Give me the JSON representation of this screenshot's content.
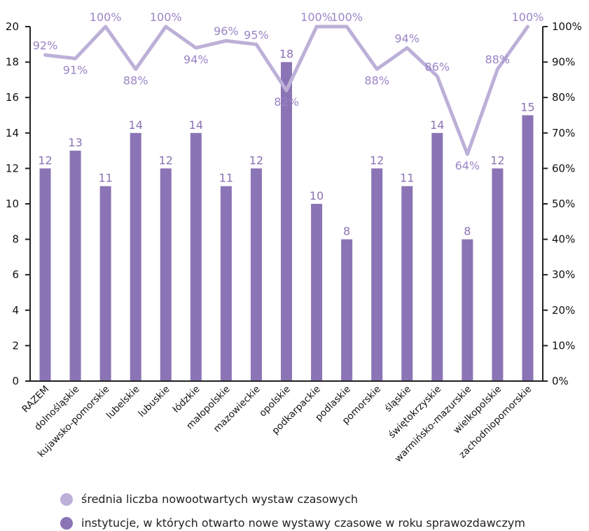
{
  "chart_data": {
    "type": "bar",
    "categories": [
      "RAZEM",
      "dolnośląskie",
      "kujawsko-pomorskie",
      "lubelskie",
      "lubuskie",
      "łódzkie",
      "małopolskie",
      "mazowieckie",
      "opolskie",
      "podkarpackie",
      "podlaskie",
      "pomorskie",
      "śląskie",
      "świętokrzyskie",
      "warmińsko-mazurskie",
      "wielkopolskie",
      "zachodniopomorskie"
    ],
    "series": [
      {
        "name": "instytucje, w których otwarto nowe wystawy czasowe w roku sprawozdawczym",
        "type": "bar",
        "axis": "left",
        "values": [
          12,
          13,
          11,
          14,
          12,
          14,
          11,
          12,
          18,
          10,
          8,
          12,
          11,
          14,
          8,
          12,
          15
        ],
        "labels": [
          "12",
          "13",
          "11",
          "14",
          "12",
          "14",
          "11",
          "12",
          "18",
          "10",
          "8",
          "12",
          "11",
          "14",
          "8",
          "12",
          "15"
        ]
      },
      {
        "name": "średnia liczba nowootwartych wystaw czasowych",
        "type": "line",
        "axis": "right",
        "values": [
          92,
          91,
          100,
          88,
          100,
          94,
          96,
          95,
          82,
          100,
          100,
          88,
          94,
          86,
          64,
          88,
          100
        ],
        "labels": [
          "92%",
          "91%",
          "100%",
          "88%",
          "100%",
          "94%",
          "96%",
          "95%",
          "82%",
          "100%",
          "100%",
          "88%",
          "94%",
          "86%",
          "64%",
          "88%",
          "100%"
        ]
      }
    ],
    "ylim_left": [
      0,
      20
    ],
    "ylim_right": [
      0,
      100
    ],
    "yticks_left": [
      "0",
      "2",
      "4",
      "6",
      "8",
      "10",
      "12",
      "14",
      "16",
      "18",
      "20"
    ],
    "yticks_right": [
      "0%",
      "10%",
      "20%",
      "30%",
      "40%",
      "50%",
      "60%",
      "70%",
      "80%",
      "90%",
      "100%"
    ],
    "colors": {
      "bar": "#8b74b5",
      "line": "#bcb0d8"
    },
    "legend_position": "bottom",
    "grid": false
  },
  "legend": {
    "line_label": "średnia liczba nowootwartych wystaw czasowych",
    "bar_label": "instytucje, w których otwarto nowe wystawy czasowe w roku sprawozdawczym"
  }
}
